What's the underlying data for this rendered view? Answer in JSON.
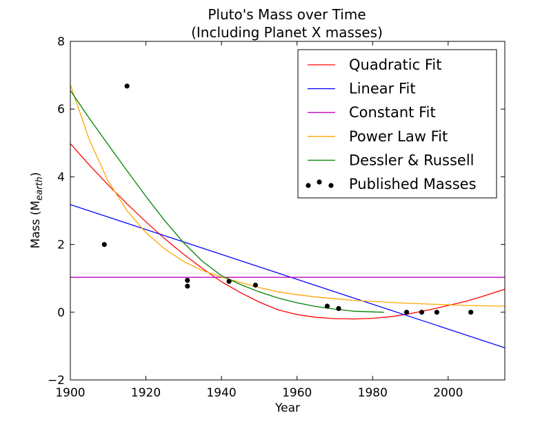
{
  "chart_data": {
    "type": "line",
    "title": "Pluto's Mass over Time",
    "subtitle": "(Including Planet X masses)",
    "xlabel": "Year",
    "ylabel": "Mass (M",
    "ylabel_subscript": "earth",
    "ylabel_close": ")",
    "xlim": [
      1900,
      2015
    ],
    "ylim": [
      -2,
      8
    ],
    "xticks": [
      1900,
      1920,
      1940,
      1960,
      1980,
      2000
    ],
    "yticks": [
      -2,
      0,
      2,
      4,
      6,
      8
    ],
    "xtick_labels": [
      "1900",
      "1920",
      "1940",
      "1960",
      "1980",
      "2000"
    ],
    "ytick_labels": [
      "−2",
      "0",
      "2",
      "4",
      "6",
      "8"
    ],
    "grid": false,
    "legend_position": "top-right",
    "series": [
      {
        "name": "Quadratic Fit",
        "color": "#ff0000",
        "x": [
          1900,
          1905,
          1910,
          1915,
          1920,
          1925,
          1930,
          1935,
          1940,
          1945,
          1950,
          1955,
          1960,
          1965,
          1970,
          1975,
          1980,
          1985,
          1990,
          1995,
          2000,
          2005,
          2010,
          2015
        ],
        "y": [
          4.98,
          4.35,
          3.76,
          3.2,
          2.67,
          2.17,
          1.71,
          1.29,
          0.9,
          0.58,
          0.3,
          0.07,
          -0.07,
          -0.15,
          -0.19,
          -0.2,
          -0.18,
          -0.13,
          -0.04,
          0.07,
          0.2,
          0.33,
          0.5,
          0.68
        ]
      },
      {
        "name": "Linear Fit",
        "color": "#0000ff",
        "x": [
          1900,
          2015
        ],
        "y": [
          3.18,
          -1.05
        ]
      },
      {
        "name": "Constant Fit",
        "color": "#bf00bf",
        "x": [
          1900,
          2015
        ],
        "y": [
          1.03,
          1.03
        ]
      },
      {
        "name": "Power Law Fit",
        "color": "#ffa500",
        "x": [
          1900,
          1905,
          1910,
          1915,
          1920,
          1925,
          1930,
          1935,
          1940,
          1945,
          1950,
          1955,
          1960,
          1965,
          1970,
          1975,
          1980,
          1985,
          1990,
          1995,
          2000,
          2005,
          2010,
          2015
        ],
        "y": [
          6.72,
          5.1,
          3.87,
          3.0,
          2.35,
          1.87,
          1.5,
          1.23,
          1.04,
          0.88,
          0.73,
          0.6,
          0.52,
          0.45,
          0.4,
          0.35,
          0.32,
          0.29,
          0.26,
          0.24,
          0.22,
          0.2,
          0.19,
          0.18
        ]
      },
      {
        "name": "Dessler & Russell",
        "color": "#008000",
        "x": [
          1900,
          1905,
          1910,
          1915,
          1920,
          1925,
          1930,
          1935,
          1940,
          1945,
          1950,
          1955,
          1960,
          1965,
          1970,
          1975,
          1980,
          1983
        ],
        "y": [
          6.55,
          5.73,
          4.95,
          4.18,
          3.42,
          2.7,
          2.05,
          1.5,
          1.08,
          0.82,
          0.6,
          0.42,
          0.28,
          0.17,
          0.09,
          0.03,
          0.01,
          0.0
        ]
      }
    ],
    "scatter": {
      "name": "Published Masses",
      "color": "#000000",
      "x": [
        1909,
        1915,
        1931,
        1931,
        1942,
        1949,
        1968,
        1971,
        1989,
        1993,
        1997,
        2006
      ],
      "y": [
        2.0,
        6.68,
        0.94,
        0.77,
        0.91,
        0.8,
        0.18,
        0.11,
        0.0,
        0.0,
        0.0,
        0.0
      ]
    }
  }
}
